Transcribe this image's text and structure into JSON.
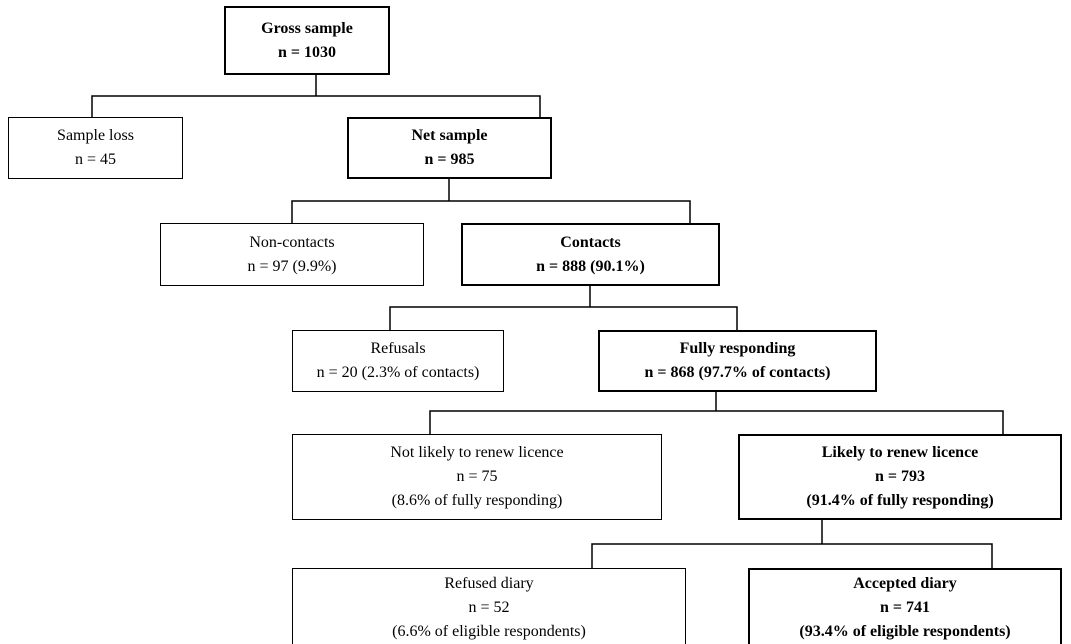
{
  "nodes": [
    {
      "lines": [
        "Gross sample",
        "n = 1030"
      ],
      "bold": true
    },
    {
      "lines": [
        "Sample loss",
        "n = 45"
      ],
      "bold": false
    },
    {
      "lines": [
        "Net sample",
        "n = 985"
      ],
      "bold": true
    },
    {
      "lines": [
        "Non-contacts",
        "n = 97 (9.9%)"
      ],
      "bold": false
    },
    {
      "lines": [
        "Contacts",
        "n = 888 (90.1%)"
      ],
      "bold": true
    },
    {
      "lines": [
        "Refusals",
        "n = 20 (2.3% of contacts)"
      ],
      "bold": false
    },
    {
      "lines": [
        "Fully responding",
        "n = 868 (97.7% of contacts)"
      ],
      "bold": true
    },
    {
      "lines": [
        "Not likely to renew licence",
        "n = 75",
        "(8.6% of fully responding)"
      ],
      "bold": false
    },
    {
      "lines": [
        "Likely to renew licence",
        "n = 793",
        "(91.4% of fully responding)"
      ],
      "bold": true
    },
    {
      "lines": [
        "Refused diary",
        "n = 52",
        "(6.6% of eligible respondents)"
      ],
      "bold": false
    },
    {
      "lines": [
        "Accepted diary",
        "n = 741",
        "(93.4% of eligible respondents)"
      ],
      "bold": true
    }
  ]
}
